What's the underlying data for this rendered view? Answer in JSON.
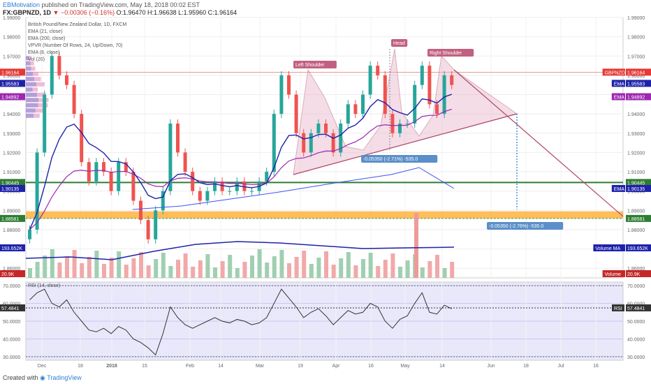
{
  "header": {
    "author": "EBMotivation",
    "published_text": "published on TradingView.com, May 18, 2018 00:02 EST",
    "symbol_line": "FX:GBPNZD, 1D",
    "change": "▼ −0.00306 (−0.16%)",
    "ohlc": "O:1.96470 H:1.96638 L:1.95960 C:1.96164"
  },
  "legend": [
    "British Pound/New Zealand Dollar, 1D, FXCM",
    "EMA (21, close)",
    "EMA (200, close)",
    "VPVR (Number Of Rows, 24, Up/Down, 70)",
    "EMA (8, close)",
    "Vol (20)"
  ],
  "footer": {
    "created": "Created with",
    "brand": "TradingView"
  },
  "colors": {
    "bull": "#26a69a",
    "bear": "#ef5350",
    "ema21": "#1e22aa",
    "ema200": "#3f51f5",
    "ema8": "#9c27b0",
    "support": "#2e7d32",
    "zone": "#ffa726",
    "pattern": "#b0476a",
    "rsi_bg": "#e9e8fb"
  },
  "chart_data": [
    {
      "type": "candlestick",
      "title": "British Pound/New Zealand Dollar, 1D, FXCM",
      "ylim": [
        1.855,
        1.99
      ],
      "yticks": [
        "1.99000",
        "1.98000",
        "1.97000",
        "1.96000",
        "1.95000",
        "1.94000",
        "1.93000",
        "1.92000",
        "1.91000",
        "1.90000",
        "1.89000",
        "1.88000",
        "1.87000",
        "1.86000"
      ],
      "xticks": [
        "Dec",
        "18",
        "2018",
        "15",
        "Feb",
        "14",
        "Mar",
        "19",
        "Apr",
        "16",
        "May",
        "14",
        "Jun",
        "18",
        "Jul",
        "16"
      ],
      "price_series": [
        1.88,
        1.92,
        1.95,
        1.97,
        1.96,
        1.955,
        1.94,
        1.915,
        1.905,
        1.915,
        1.91,
        1.9,
        1.915,
        1.91,
        1.895,
        1.885,
        1.875,
        1.89,
        1.9,
        1.935,
        1.92,
        1.91,
        1.9,
        1.895,
        1.9,
        1.905,
        1.9,
        1.9,
        1.905,
        1.9,
        1.9,
        1.905,
        1.91,
        1.94,
        1.96,
        1.95,
        1.93,
        1.92,
        1.93,
        1.935,
        1.93,
        1.92,
        1.935,
        1.945,
        1.94,
        1.95,
        1.965,
        1.96,
        1.94,
        1.93,
        1.935,
        1.935,
        1.955,
        1.965,
        1.945,
        1.94,
        1.96,
        1.955
      ],
      "price_labels": [
        {
          "text": "1.96164",
          "color": "#e53935"
        },
        {
          "text": "1.95583",
          "color": "#1e22aa"
        },
        {
          "text": "1.94892",
          "color": "#9c27b0"
        },
        {
          "text": "1.90445",
          "color": "#2e7d32"
        },
        {
          "text": "1.90135",
          "color": "#1e22aa"
        },
        {
          "text": "1.88581",
          "color": "#2e7d32"
        },
        {
          "text": "193.652K",
          "color": "#1e22aa"
        },
        {
          "text": "20.9K",
          "color": "#c62828"
        }
      ],
      "right_labels": [
        {
          "text": "GBPNZD",
          "color": "#e53935"
        },
        {
          "text": "EMA",
          "color": "#1e22aa"
        },
        {
          "text": "EMA",
          "color": "#9c27b0"
        },
        {
          "text": "EMA",
          "color": "#1e22aa"
        },
        {
          "text": "Volume MA",
          "color": "#1e22aa"
        },
        {
          "text": "Volume",
          "color": "#c62828"
        }
      ],
      "annotations": [
        {
          "text": "Left Shoulder"
        },
        {
          "text": "Head"
        },
        {
          "text": "Right Shoulder"
        },
        {
          "text": "-0.05350 (-2.71%) -535.0"
        },
        {
          "text": "-0.05350 (-2.76%) -535.0"
        }
      ],
      "key_levels": {
        "current": 1.96164,
        "support": 1.90445,
        "zone": [
          1.8858,
          1.8895
        ]
      }
    },
    {
      "type": "line",
      "title": "RSI (14, close)",
      "ylim": [
        28,
        72
      ],
      "yticks": [
        "70.0000",
        "60.0000",
        "50.0000",
        "40.0000",
        "30.0000"
      ],
      "last_label": {
        "text": "57.4841",
        "name": "RSI"
      },
      "values": [
        62,
        66,
        68,
        60,
        58,
        62,
        55,
        50,
        45,
        44,
        46,
        43,
        47,
        45,
        40,
        38,
        35,
        31,
        43,
        58,
        52,
        48,
        46,
        48,
        50,
        52,
        50,
        49,
        51,
        50,
        48,
        49,
        52,
        60,
        68,
        63,
        58,
        52,
        55,
        57,
        53,
        48,
        52,
        56,
        54,
        55,
        60,
        58,
        50,
        46,
        51,
        53,
        60,
        66,
        55,
        54,
        59,
        57
      ]
    }
  ]
}
